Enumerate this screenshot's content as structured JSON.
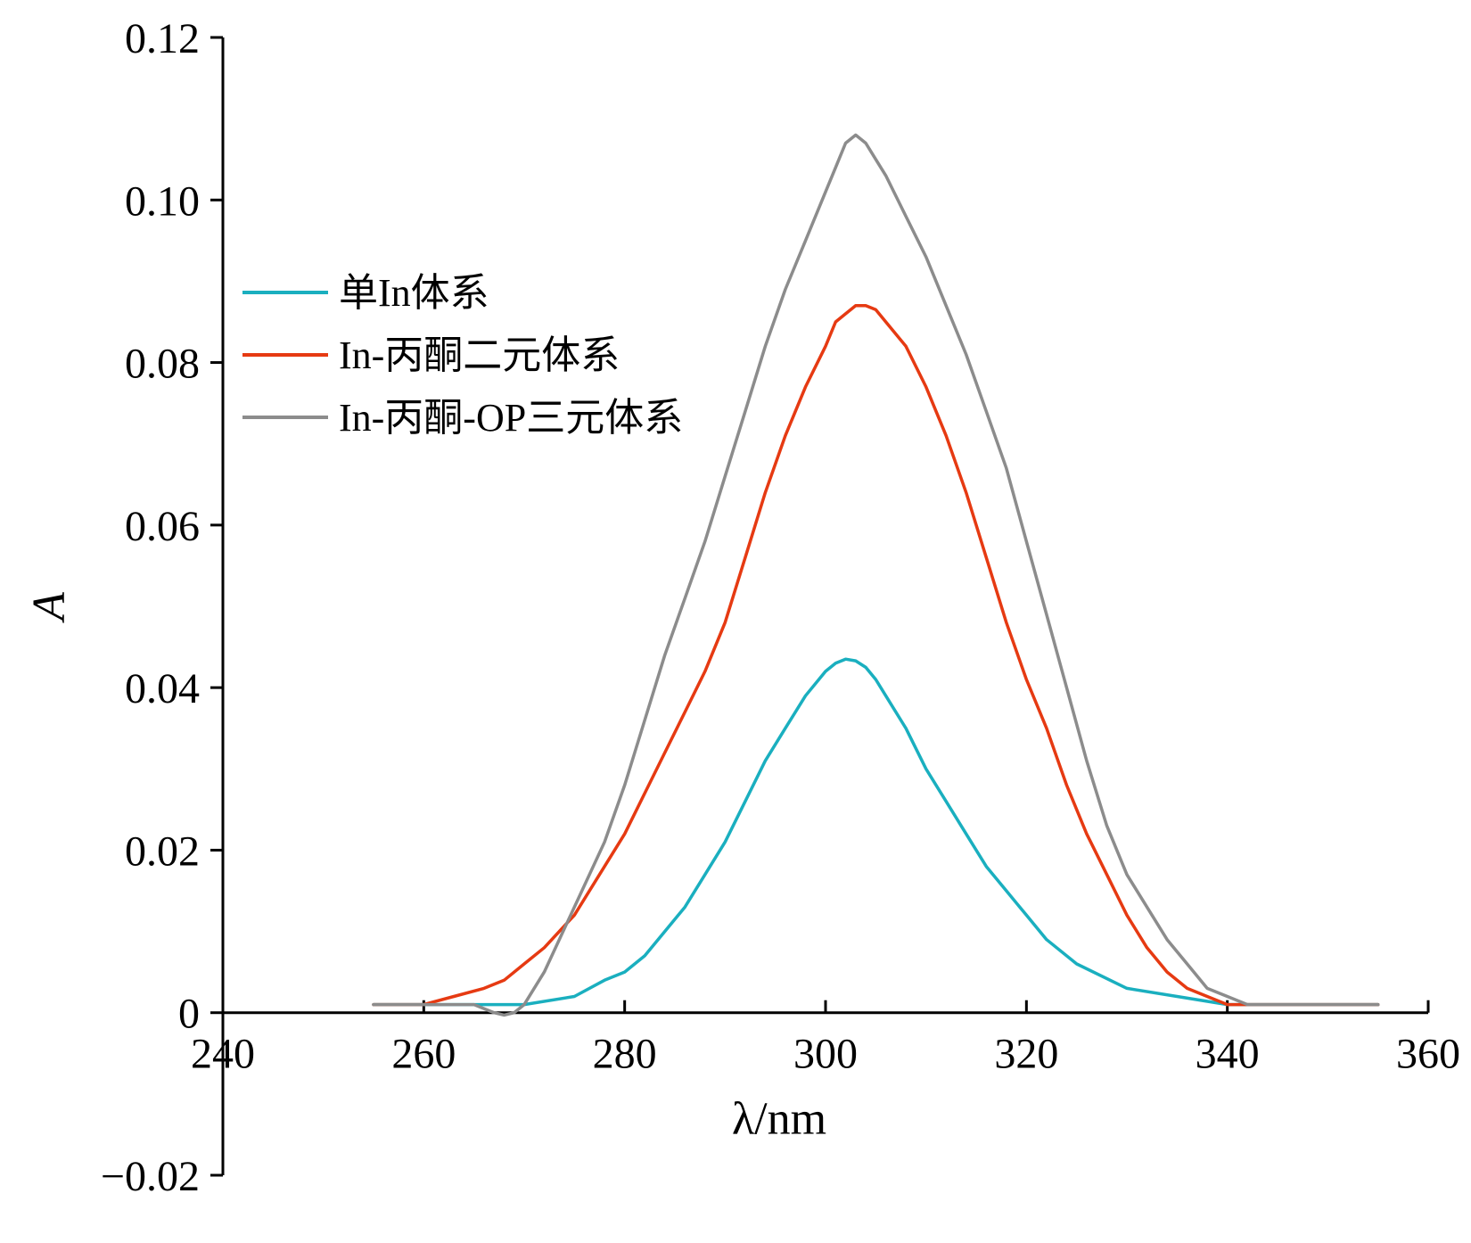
{
  "chart_data": {
    "type": "line",
    "title": "",
    "xlabel": "λ/nm",
    "ylabel": "A",
    "xlim": [
      240,
      360
    ],
    "ylim": [
      -0.02,
      0.12
    ],
    "x_ticks": [
      240,
      260,
      280,
      300,
      320,
      340,
      360
    ],
    "x_tick_labels": [
      "240",
      "260",
      "280",
      "300",
      "320",
      "340",
      "360"
    ],
    "y_ticks": [
      -0.02,
      0,
      0.02,
      0.04,
      0.06,
      0.08,
      0.1,
      0.12
    ],
    "y_tick_labels": [
      "−0.02",
      "0",
      "0.02",
      "0.04",
      "0.06",
      "0.08",
      "0.10",
      "0.12"
    ],
    "grid": false,
    "legend_position": "left",
    "series": [
      {
        "name": "单In体系",
        "color": "#1aafbf",
        "x": [
          255,
          260,
          265,
          270,
          275,
          278,
          280,
          282,
          284,
          286,
          288,
          290,
          292,
          294,
          296,
          298,
          300,
          301,
          302,
          303,
          304,
          305,
          306,
          308,
          310,
          312,
          314,
          316,
          318,
          320,
          322,
          325,
          330,
          335,
          340,
          345,
          350,
          355
        ],
        "y": [
          0.001,
          0.001,
          0.001,
          0.001,
          0.002,
          0.004,
          0.005,
          0.007,
          0.01,
          0.013,
          0.017,
          0.021,
          0.026,
          0.031,
          0.035,
          0.039,
          0.042,
          0.043,
          0.0435,
          0.0433,
          0.0425,
          0.041,
          0.039,
          0.035,
          0.03,
          0.026,
          0.022,
          0.018,
          0.015,
          0.012,
          0.009,
          0.006,
          0.003,
          0.002,
          0.001,
          0.001,
          0.001,
          0.001
        ]
      },
      {
        "name": "In-丙酮二元体系",
        "color": "#e63a12",
        "x": [
          255,
          260,
          263,
          266,
          268,
          270,
          272,
          275,
          278,
          280,
          282,
          284,
          286,
          288,
          290,
          292,
          294,
          296,
          298,
          300,
          301,
          302,
          303,
          304,
          305,
          306,
          308,
          310,
          312,
          314,
          316,
          318,
          320,
          322,
          324,
          326,
          328,
          330,
          332,
          334,
          336,
          338,
          340,
          342,
          345,
          350,
          355
        ],
        "y": [
          0.001,
          0.001,
          0.002,
          0.003,
          0.004,
          0.006,
          0.008,
          0.012,
          0.018,
          0.022,
          0.027,
          0.032,
          0.037,
          0.042,
          0.048,
          0.056,
          0.064,
          0.071,
          0.077,
          0.082,
          0.085,
          0.086,
          0.087,
          0.087,
          0.0865,
          0.085,
          0.082,
          0.077,
          0.071,
          0.064,
          0.056,
          0.048,
          0.041,
          0.035,
          0.028,
          0.022,
          0.017,
          0.012,
          0.008,
          0.005,
          0.003,
          0.002,
          0.001,
          0.001,
          0.001,
          0.001,
          0.001
        ]
      },
      {
        "name": "In-丙酮-OP三元体系",
        "color": "#8c8c8c",
        "x": [
          255,
          260,
          265,
          267,
          268,
          269,
          270,
          272,
          275,
          278,
          280,
          282,
          284,
          286,
          288,
          290,
          292,
          294,
          296,
          298,
          300,
          301,
          302,
          303,
          304,
          305,
          306,
          308,
          310,
          312,
          314,
          316,
          318,
          320,
          322,
          324,
          326,
          328,
          330,
          332,
          334,
          336,
          338,
          340,
          342,
          345,
          350,
          355
        ],
        "y": [
          0.001,
          0.001,
          0.001,
          0.0,
          -0.0003,
          0.0,
          0.001,
          0.005,
          0.013,
          0.021,
          0.028,
          0.036,
          0.044,
          0.051,
          0.058,
          0.066,
          0.074,
          0.082,
          0.089,
          0.095,
          0.101,
          0.104,
          0.107,
          0.108,
          0.107,
          0.105,
          0.103,
          0.098,
          0.093,
          0.087,
          0.081,
          0.074,
          0.067,
          0.058,
          0.049,
          0.04,
          0.031,
          0.023,
          0.017,
          0.013,
          0.009,
          0.006,
          0.003,
          0.002,
          0.001,
          0.001,
          0.001,
          0.001
        ]
      }
    ]
  }
}
